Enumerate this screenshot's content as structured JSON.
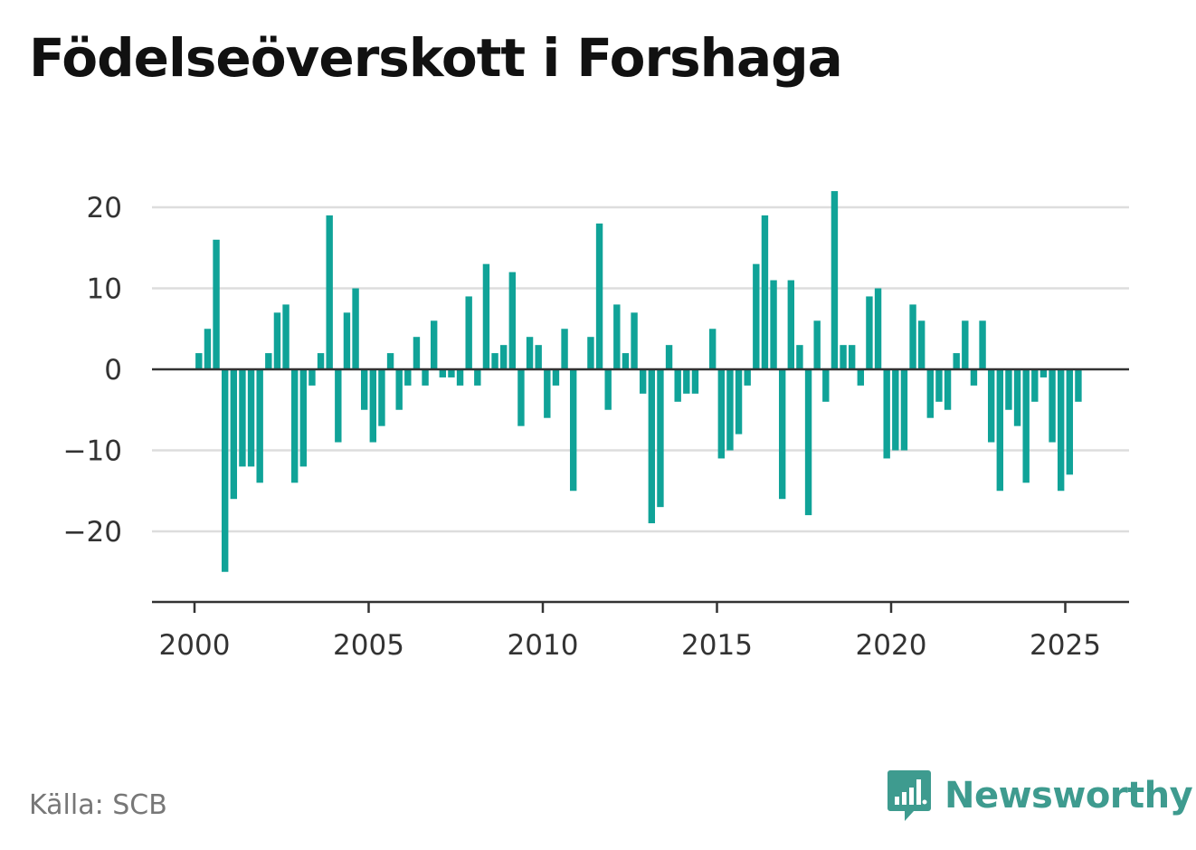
{
  "title": "Födelseöverskott i Forshaga",
  "source": "Källa: SCB",
  "brand": {
    "name": "Newsworthy",
    "logo_icon": "bar-chart-speech-bubble-icon",
    "color": "#3e9b8f"
  },
  "colors": {
    "bar": "#10a398",
    "grid": "#dddddd",
    "zero_line": "#333333",
    "axis": "#333333"
  },
  "chart_data": {
    "type": "bar",
    "title": "Födelseöverskott i Forshaga",
    "xlabel": "",
    "ylabel": "",
    "frequency": "quarterly",
    "start": "2000 Q1",
    "xlim": [
      1999.6,
      2026.8
    ],
    "ylim": [
      -28,
      24
    ],
    "yticks": [
      20,
      10,
      0,
      -10,
      -20
    ],
    "ytick_labels": [
      "20",
      "10",
      "0",
      "−10",
      "−20"
    ],
    "xticks": [
      2000,
      2005,
      2010,
      2015,
      2020,
      2025
    ],
    "xtick_labels": [
      "2000",
      "2005",
      "2010",
      "2015",
      "2020",
      "2025"
    ],
    "grid": true,
    "values": [
      2,
      5,
      16,
      -25,
      -16,
      -12,
      -12,
      -14,
      2,
      7,
      8,
      -14,
      -12,
      -2,
      2,
      19,
      -9,
      7,
      10,
      -5,
      -9,
      -7,
      2,
      -5,
      -2,
      4,
      -2,
      6,
      -1,
      -1,
      -2,
      9,
      -2,
      13,
      2,
      3,
      12,
      -7,
      4,
      3,
      -6,
      -2,
      5,
      -15,
      0,
      4,
      18,
      -5,
      8,
      2,
      7,
      -3,
      -19,
      -17,
      3,
      -4,
      -3,
      -3,
      0,
      5,
      -11,
      -10,
      -8,
      -2,
      13,
      19,
      11,
      -16,
      11,
      3,
      -18,
      6,
      -4,
      22,
      3,
      3,
      -2,
      9,
      10,
      -11,
      -10,
      -10,
      8,
      6,
      -6,
      -4,
      -5,
      2,
      6,
      -2,
      6,
      -9,
      -15,
      -5,
      -7,
      -14,
      -4,
      -1,
      -9,
      -15,
      -13,
      -4
    ]
  }
}
